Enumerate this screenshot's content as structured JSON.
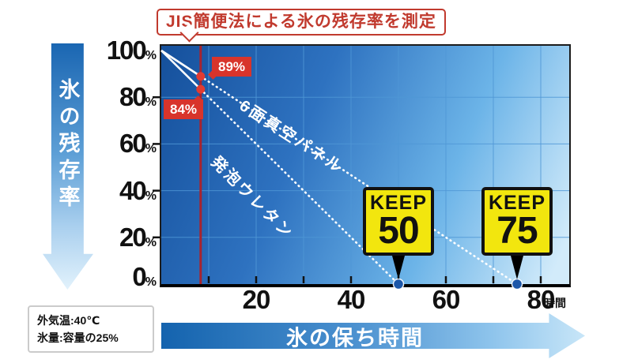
{
  "title": {
    "text": "JIS簡便法による氷の残存率を測定"
  },
  "y_axis_arrow": {
    "label": "氷の残存率"
  },
  "x_axis_arrow": {
    "label": "氷の保ち時間"
  },
  "conditions_box": {
    "line1": "外気温:40℃",
    "line2": "氷量:容量の25%"
  },
  "colors": {
    "accent_red": "#c13a2e",
    "callout_red": "#d8342b",
    "measure_line_red": "#a8232e",
    "badge_yellow": "#f2e60e",
    "endpoint_blue": "#1c57a9",
    "grid_blue": "#4f97d6",
    "plot_dark_blue": "#15509c",
    "plot_light_blue": "#d2ebfa"
  },
  "chart_data": {
    "type": "line",
    "title": "JIS簡便法による氷の残存率を測定",
    "xlabel": "時間",
    "ylabel": "氷の残存率",
    "xlim": [
      0,
      86
    ],
    "ylim": [
      0,
      100
    ],
    "x_grid_step": 10,
    "y_grid_step": 20,
    "grid": true,
    "x_tick_labels": [
      {
        "t": 20,
        "label": "20"
      },
      {
        "t": 40,
        "label": "40"
      },
      {
        "t": 60,
        "label": "60"
      },
      {
        "t": 80,
        "label": "80"
      }
    ],
    "y_tick_labels": [
      {
        "p": 100,
        "label": "100",
        "suffix": "%"
      },
      {
        "p": 80,
        "label": "80",
        "suffix": "%"
      },
      {
        "p": 60,
        "label": "60",
        "suffix": "%"
      },
      {
        "p": 40,
        "label": "40",
        "suffix": "%"
      },
      {
        "p": 20,
        "label": "20",
        "suffix": "%"
      },
      {
        "p": 0,
        "label": "0",
        "suffix": "%"
      }
    ],
    "measurement_hour": 8.3,
    "series": [
      {
        "name": "6面真空パネル",
        "start_pct": 100,
        "end_hours": 75,
        "measured_pct_label": "89%",
        "measured_pct": 89
      },
      {
        "name": "発泡ウレタン",
        "start_pct": 100,
        "end_hours": 50,
        "measured_pct_label": "84%",
        "measured_pct": 84
      }
    ],
    "keep_markers": [
      {
        "word": "KEEP",
        "value": "50",
        "hours": 50
      },
      {
        "word": "KEEP",
        "value": "75",
        "hours": 75
      }
    ]
  }
}
